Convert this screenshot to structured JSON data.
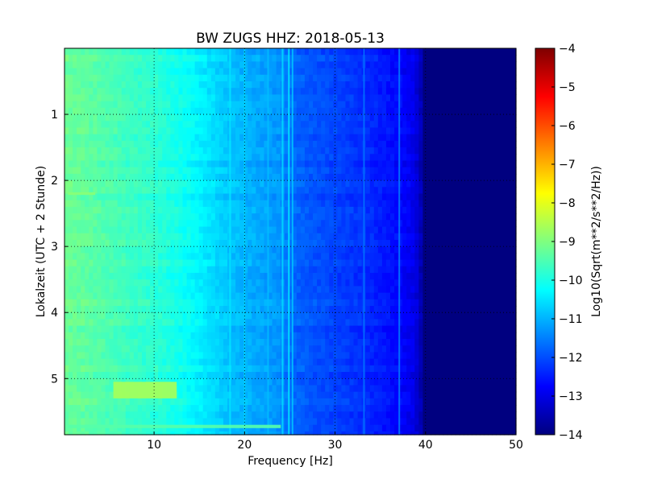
{
  "chart_data": {
    "type": "heatmap",
    "title": "BW ZUGS HHZ: 2018-05-13",
    "xlabel": "Frequency [Hz]",
    "ylabel": "Lokalzeit (UTC + 2 Stunde)",
    "xlim": [
      0.1,
      50
    ],
    "ylim": [
      5.85,
      0
    ],
    "x_ticks": [
      10,
      20,
      30,
      40,
      50
    ],
    "y_ticks": [
      1,
      2,
      3,
      4,
      5
    ],
    "grid": true,
    "colormap": "jet",
    "colorbar": {
      "label": "Log10(Sqrt(m**2/s**2/Hz))",
      "min": -14,
      "max": -4,
      "ticks": [
        -4,
        -5,
        -6,
        -7,
        -8,
        -9,
        -10,
        -11,
        -12,
        -13,
        -14
      ]
    },
    "frequency_profile": {
      "frequency_hz": [
        0.1,
        2,
        5,
        8,
        10,
        13,
        16,
        18,
        20,
        22,
        24,
        25,
        27,
        30,
        33,
        35,
        37,
        38.5,
        39.2,
        40,
        50
      ],
      "level_log10": [
        -9.2,
        -9.3,
        -9.5,
        -9.7,
        -9.8,
        -10.1,
        -10.5,
        -10.8,
        -11.0,
        -11.15,
        -11.3,
        -11.7,
        -11.9,
        -12.1,
        -12.3,
        -12.5,
        -12.7,
        -12.9,
        -13.2,
        -14.0,
        -14.0
      ]
    },
    "spectral_lines": [
      {
        "frequency_hz": 18.4,
        "level_log10": -10.5
      },
      {
        "frequency_hz": 20.0,
        "level_log10": -10.7
      },
      {
        "frequency_hz": 22.6,
        "level_log10": -10.9
      },
      {
        "frequency_hz": 24.2,
        "level_log10": -10.6
      },
      {
        "frequency_hz": 24.9,
        "level_log10": -10.4
      },
      {
        "frequency_hz": 25.3,
        "level_log10": -10.8
      },
      {
        "frequency_hz": 33.2,
        "level_log10": -11.6
      },
      {
        "frequency_hz": 37.1,
        "level_log10": -11.5
      }
    ],
    "events": [
      {
        "time_start": 5.05,
        "time_end": 5.3,
        "freq_start": 5.5,
        "freq_end": 12.5,
        "level_log10": -8.6
      },
      {
        "time_start": 2.18,
        "time_end": 2.22,
        "freq_start": 0.5,
        "freq_end": 3.5,
        "level_log10": -8.9
      },
      {
        "time_start": 5.7,
        "time_end": 5.75,
        "freq_start": 0.5,
        "freq_end": 24.0,
        "level_log10": -9.4
      }
    ]
  }
}
